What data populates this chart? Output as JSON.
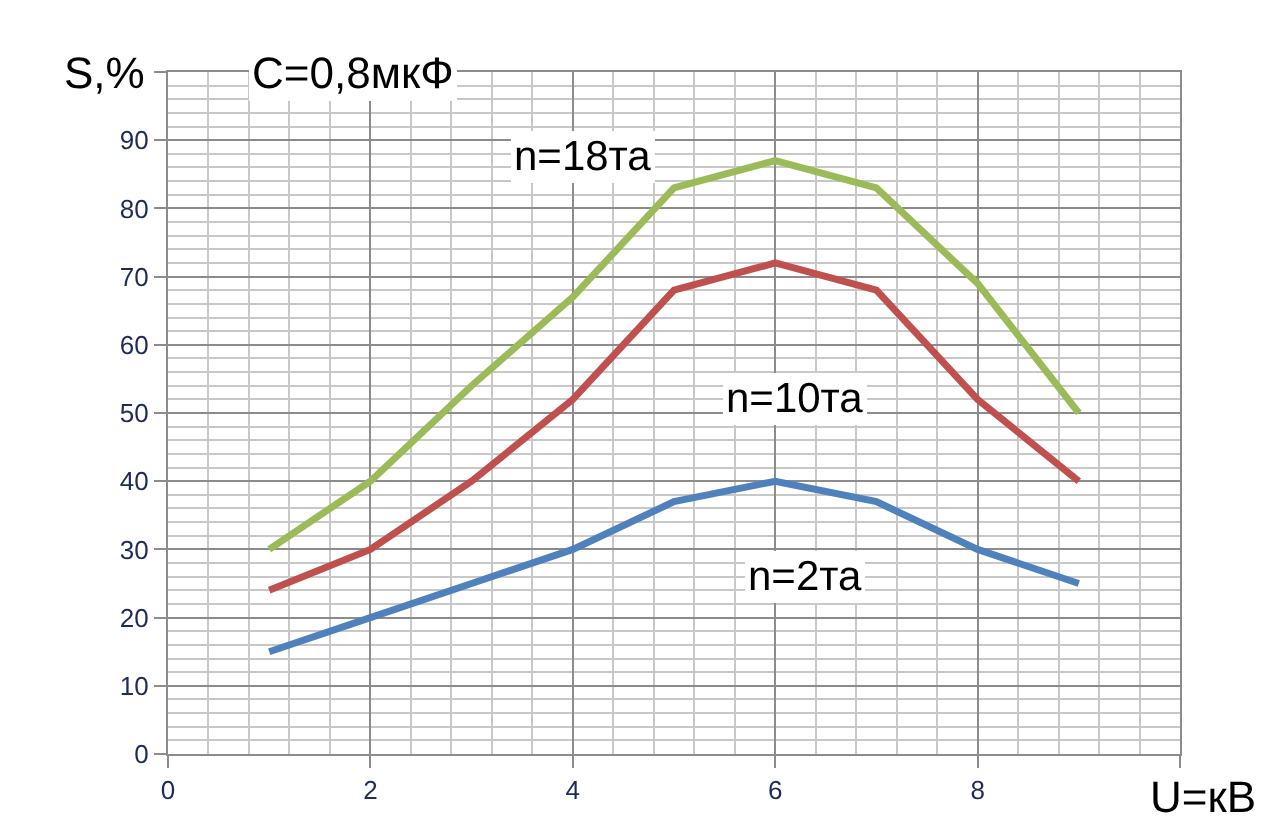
{
  "chart_data": {
    "type": "line",
    "title": "C=0,8мкФ",
    "xlabel": "U=кВ",
    "ylabel": "S,%",
    "x": [
      1,
      2,
      3,
      4,
      5,
      6,
      7,
      8,
      9
    ],
    "series": [
      {
        "name": "n=18та",
        "color": "#9bbb59",
        "values": [
          30,
          40,
          54,
          67,
          83,
          87,
          83,
          69,
          50
        ]
      },
      {
        "name": "n=10та",
        "color": "#c0504d",
        "values": [
          24,
          30,
          40,
          52,
          68,
          72,
          68,
          52,
          40
        ]
      },
      {
        "name": "n=2та",
        "color": "#4f81bd",
        "values": [
          15,
          20,
          25,
          30,
          37,
          40,
          37,
          30,
          25
        ]
      }
    ],
    "xlim": [
      0,
      10
    ],
    "xticks": [
      0,
      2,
      4,
      6,
      8,
      {
        "value": 10,
        "label": null
      }
    ],
    "ylim": [
      0,
      100
    ],
    "yticks": [
      0,
      10,
      20,
      30,
      40,
      50,
      60,
      70,
      80,
      90,
      {
        "value": 100,
        "label": null
      }
    ],
    "grid": true,
    "legend": false,
    "marker": "none",
    "line_style": "solid"
  }
}
